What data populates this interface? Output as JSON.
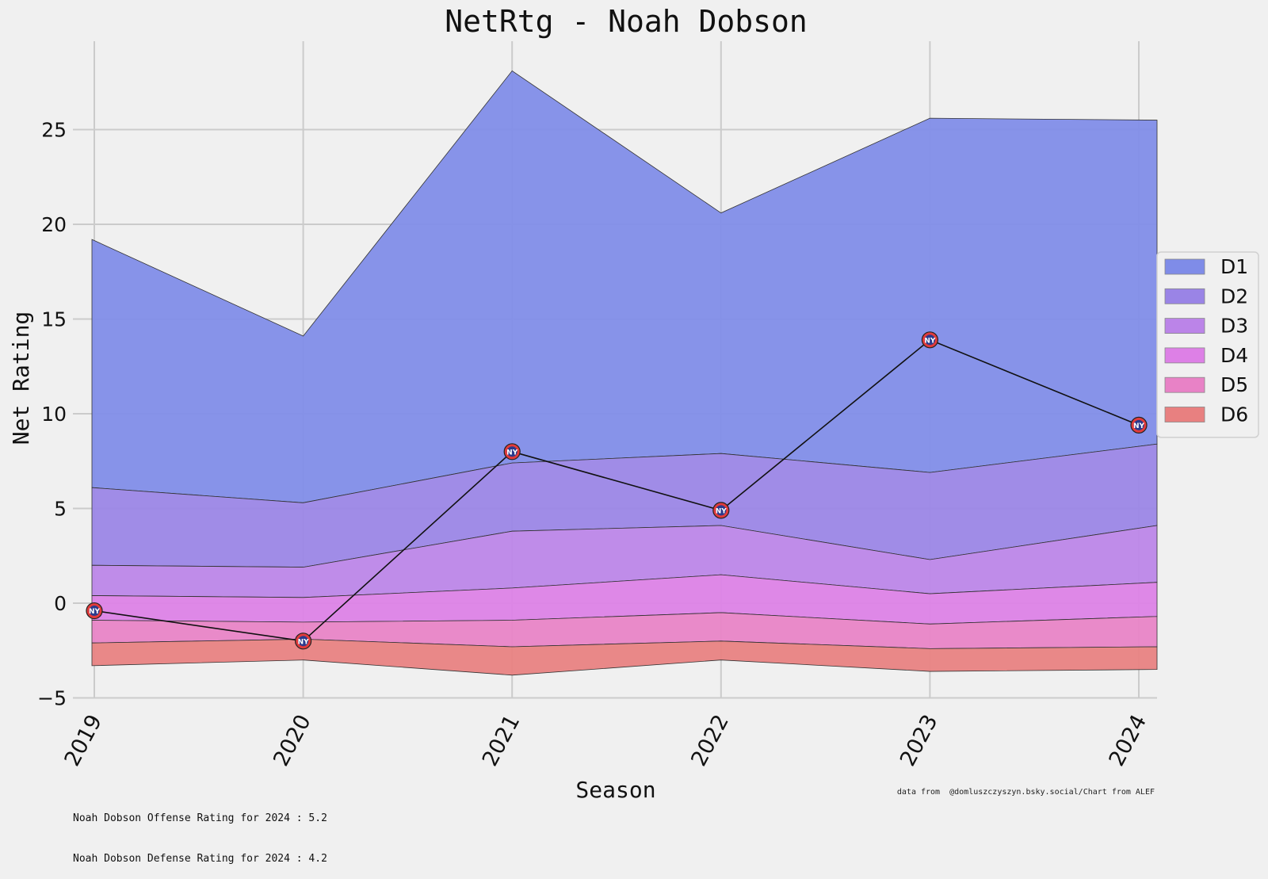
{
  "chart_data": {
    "type": "area",
    "title": "NetRtg - Noah Dobson",
    "xlabel": "Season",
    "ylabel": "Net Rating",
    "categories": [
      "2019",
      "2020",
      "2021",
      "2022",
      "2023",
      "2024"
    ],
    "yticks": [
      "25",
      "20",
      "15",
      "10",
      "5",
      "0",
      "−5"
    ],
    "ytick_values": [
      25,
      20,
      15,
      10,
      5,
      0,
      -5
    ],
    "ylim": [
      -5.7,
      29.6
    ],
    "grid": true,
    "legend_position": "right",
    "bands": [
      {
        "name": "D1",
        "color": "#7f8ce8",
        "lower": [
          6.1,
          5.3,
          7.4,
          7.9,
          6.9,
          8.4
        ],
        "upper": [
          19.2,
          14.1,
          28.1,
          20.6,
          25.6,
          25.5
        ]
      },
      {
        "name": "D2",
        "color": "#9a84e6",
        "lower": [
          2.0,
          1.9,
          3.8,
          4.1,
          2.3,
          4.1
        ],
        "upper": [
          6.1,
          5.3,
          7.4,
          7.9,
          6.9,
          8.4
        ]
      },
      {
        "name": "D3",
        "color": "#bb84e8",
        "lower": [
          0.4,
          0.3,
          0.8,
          1.5,
          0.5,
          1.1
        ],
        "upper": [
          2.0,
          1.9,
          3.8,
          4.1,
          2.3,
          4.1
        ]
      },
      {
        "name": "D4",
        "color": "#dd80e6",
        "lower": [
          -0.9,
          -1.0,
          -0.9,
          -0.5,
          -1.1,
          -0.7
        ],
        "upper": [
          0.4,
          0.3,
          0.8,
          1.5,
          0.5,
          1.1
        ]
      },
      {
        "name": "D5",
        "color": "#e882c6",
        "lower": [
          -2.1,
          -1.9,
          -2.3,
          -2.0,
          -2.4,
          -2.3
        ],
        "upper": [
          -0.9,
          -1.0,
          -0.9,
          -0.5,
          -1.1,
          -0.7
        ]
      },
      {
        "name": "D6",
        "color": "#e88080",
        "lower": [
          -3.3,
          -3.0,
          -3.8,
          -3.0,
          -3.6,
          -3.5
        ],
        "upper": [
          -2.1,
          -1.9,
          -2.3,
          -2.0,
          -2.4,
          -2.3
        ]
      }
    ],
    "player_line": {
      "values": [
        -0.4,
        -2.0,
        8.0,
        4.9,
        13.9,
        9.4
      ],
      "marker_icon": "islanders-logo-icon",
      "marker_text": "NY"
    }
  },
  "footer": {
    "offense_note": "Noah Dobson Offense Rating for 2024 : 5.2",
    "defense_note": "Noah Dobson Defense Rating for 2024 : 4.2",
    "credit": "data from  @domluszczyszyn.bsky.social/Chart from ALEF"
  }
}
